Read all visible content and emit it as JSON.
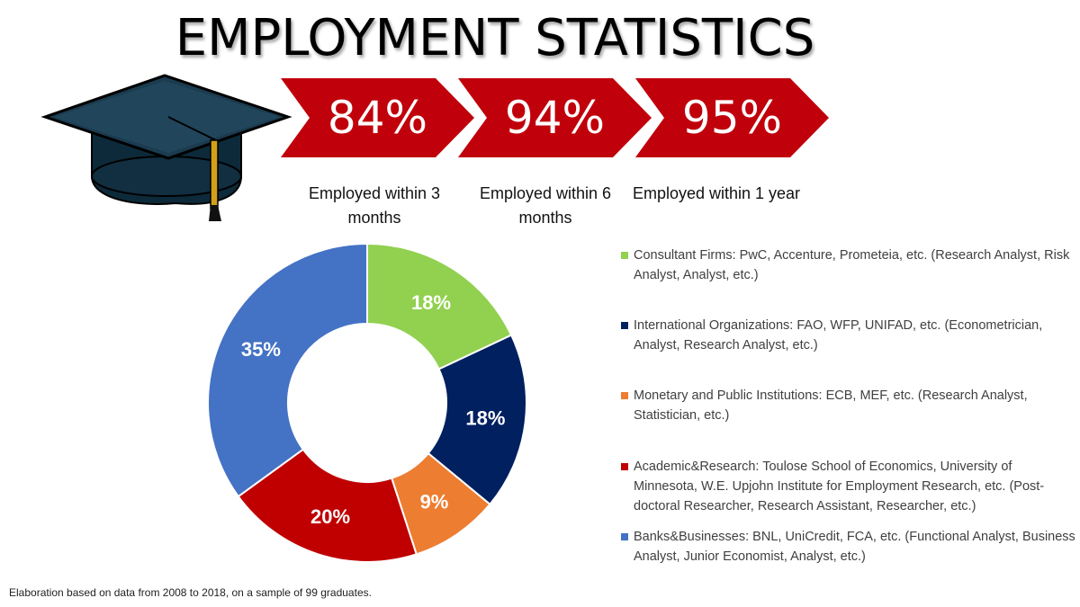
{
  "title": "EMPLOYMENT STATISTICS",
  "icons": {
    "cap": "graduation-cap-icon"
  },
  "colors": {
    "arrow_red": "#C0000B"
  },
  "arrows": [
    {
      "value": "84%",
      "caption": "Employed within 3 months"
    },
    {
      "value": "94%",
      "caption": "Employed within 6 months"
    },
    {
      "value": "95%",
      "caption": "Employed within 1 year"
    }
  ],
  "chart_data": {
    "type": "pie",
    "hole": "donut",
    "title": "",
    "categories": [
      "Consultant Firms: PwC, Accenture, Prometeia, etc. (Research Analyst, Risk Analyst, Analyst, etc.)",
      "International Organizations: FAO, WFP, UNIFAD, etc. (Econometrician, Analyst, Research Analyst, etc.)",
      "Monetary and Public Institutions: ECB, MEF, etc. (Research Analyst, Statistician, etc.)",
      "Academic&Research: Toulose School of Economics, University of Minnesota, W.E. Upjohn Institute for Employment Research, etc. (Post-doctoral Researcher, Research Assistant, Researcher, etc.)",
      "Banks&Businesses: BNL, UniCredit, FCA, etc. (Functional Analyst, Business Analyst, Junior Economist, Analyst, etc.)"
    ],
    "values": [
      18,
      18,
      9,
      20,
      35
    ],
    "labels": [
      "18%",
      "18%",
      "9%",
      "20%",
      "35%"
    ],
    "colors": [
      "#92D050",
      "#002060",
      "#ED7D31",
      "#C00000",
      "#4472C4"
    ],
    "legend": "right"
  },
  "footnote": "Elaboration based on data from 2008 to 2018, on a sample of 99 graduates."
}
